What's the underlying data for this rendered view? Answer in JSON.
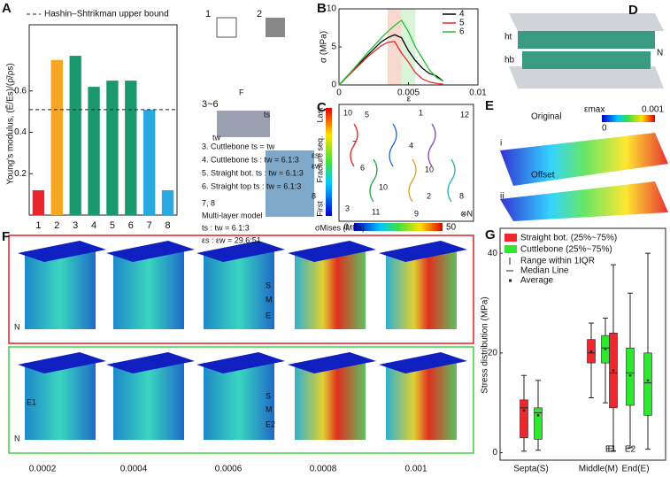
{
  "chart_data": [
    {
      "type": "bar",
      "ylabel": "Young's modulus, (Ē/Es)/(ρ̄/ρs)",
      "categories": [
        "1",
        "2",
        "3",
        "4",
        "5",
        "6",
        "7",
        "8"
      ],
      "values": [
        0.12,
        0.75,
        0.77,
        0.62,
        0.65,
        0.65,
        0.51,
        0.12
      ],
      "colors": [
        "#e8262b",
        "#f5a623",
        "#1a9a6c",
        "#1a9a6c",
        "#1a9a6c",
        "#1a9a6c",
        "#29a9e0",
        "#29a9e0"
      ],
      "ylim": [
        0,
        0.92
      ],
      "yticks": [
        0.2,
        0.4,
        0.6
      ],
      "reference_line": {
        "value": 0.51,
        "label": "Hashin–Shtrikman upper bound"
      }
    },
    {
      "type": "line",
      "xlabel": "ε",
      "ylabel": "σ (MPa)",
      "xlim": [
        0,
        0.01
      ],
      "xticks": [
        0,
        0.005,
        0.01
      ],
      "ylim": [
        0,
        10
      ],
      "yticks": [
        0,
        5,
        10
      ],
      "x": [
        0,
        0.001,
        0.002,
        0.003,
        0.0035,
        0.004,
        0.0045,
        0.005,
        0.0055,
        0.006,
        0.0065,
        0.007,
        0.0075
      ],
      "series": [
        {
          "name": "4",
          "color": "#000000",
          "values": [
            0,
            1.9,
            3.8,
            5.6,
            6.2,
            6.6,
            6.2,
            4.5,
            3.2,
            2.2,
            1.5,
            1.2,
            0.5
          ]
        },
        {
          "name": "5",
          "color": "#e8262b",
          "values": [
            0,
            1.8,
            3.6,
            5.1,
            5.6,
            5.7,
            4.2,
            3,
            1.6,
            0.8,
            0.4,
            0.2,
            0.1
          ]
        },
        {
          "name": "6",
          "color": "#22c02a",
          "values": [
            0,
            2,
            4.1,
            6.1,
            7,
            7.8,
            8.5,
            7,
            5,
            3.5,
            2,
            1,
            0.5
          ]
        }
      ]
    },
    {
      "type": "box",
      "ylabel": "Stress distribution (MPa)",
      "categories": [
        "Septa(S)",
        "Middle(M)",
        "End(E)"
      ],
      "ylim": [
        -1.5,
        45
      ],
      "yticks": [
        0,
        20,
        40
      ],
      "series": [
        {
          "name": "Straight bot. (25%~75%)",
          "color": "#f0282d",
          "labels": [
            null,
            null,
            "E"
          ],
          "values": [
            {
              "low": 0.3,
              "q1": 3,
              "median": 9,
              "q3": 10.6,
              "high": 15.5,
              "mean": 8.5
            },
            {
              "low": 11,
              "q1": 18,
              "median": 20,
              "q3": 22.7,
              "high": 26,
              "mean": 20.3
            },
            {
              "low": 0.4,
              "q1": 9,
              "median": 16,
              "q3": 24,
              "high": 37.7,
              "mean": 16.5
            }
          ]
        },
        {
          "name": "Cuttlebone (25%~75%)",
          "color": "#2ee82e",
          "labels": [
            null,
            null,
            "E1",
            "E2"
          ],
          "values": [
            {
              "low": 0.5,
              "q1": 2.7,
              "median": 8,
              "q3": 9,
              "high": 14.5,
              "mean": 7.5
            },
            {
              "low": 10,
              "q1": 18,
              "median": 21,
              "q3": 23.5,
              "high": 27,
              "mean": 20.8
            },
            {
              "low": 1,
              "q1": 9.5,
              "median": 16,
              "q3": 21,
              "high": 32,
              "mean": 15.5
            },
            {
              "low": 0.7,
              "q1": 7.5,
              "median": 14,
              "q3": 20,
              "high": 40,
              "mean": 14.5
            }
          ]
        }
      ],
      "legend_extra": [
        "Range within 1IQR",
        "Median Line",
        "Average"
      ]
    }
  ],
  "panel_labels": [
    "A",
    "B",
    "C",
    "D",
    "E",
    "F",
    "G"
  ],
  "panel_a_text": [
    "1",
    "2",
    "3~6",
    "F",
    "ts",
    "tw",
    "3. Cuttlebone  ts = tw",
    "4. Cuttlebone  ts : tw = 6.1:3",
    "5. Straight bot.  ts : tw = 6.1:3",
    "6. Straight top  ts : tw = 6.1:3",
    "7, 8",
    "Multi-layer model",
    "ts : tw = 6.1:3",
    "εs : εw = 29.6:51",
    "εs",
    "εw",
    "8"
  ],
  "panel_c": {
    "sequence_labels": [
      "Last",
      "Fracture seq.",
      "First"
    ],
    "numbers": [
      "10",
      "5",
      "1",
      "12",
      "7",
      "4",
      "6",
      "10",
      "3",
      "11",
      "10",
      "2",
      "9",
      "8",
      "⊗N"
    ]
  },
  "stress_colorbar": {
    "title": "σMises (MPa)",
    "min": 0,
    "max": 50
  },
  "panel_d": [
    "ht",
    "hb",
    "N"
  ],
  "panel_e": {
    "labels": [
      "Original",
      "Offset",
      "i",
      "ii",
      "εmax"
    ],
    "min": 0,
    "max": 0.001
  },
  "panel_f": {
    "labels": [
      "S",
      "M",
      "E",
      "S",
      "M",
      "E1",
      "E2",
      "N",
      "N"
    ],
    "strains": [
      0.0002,
      0.0004,
      0.0006,
      0.0008,
      0.001
    ]
  }
}
